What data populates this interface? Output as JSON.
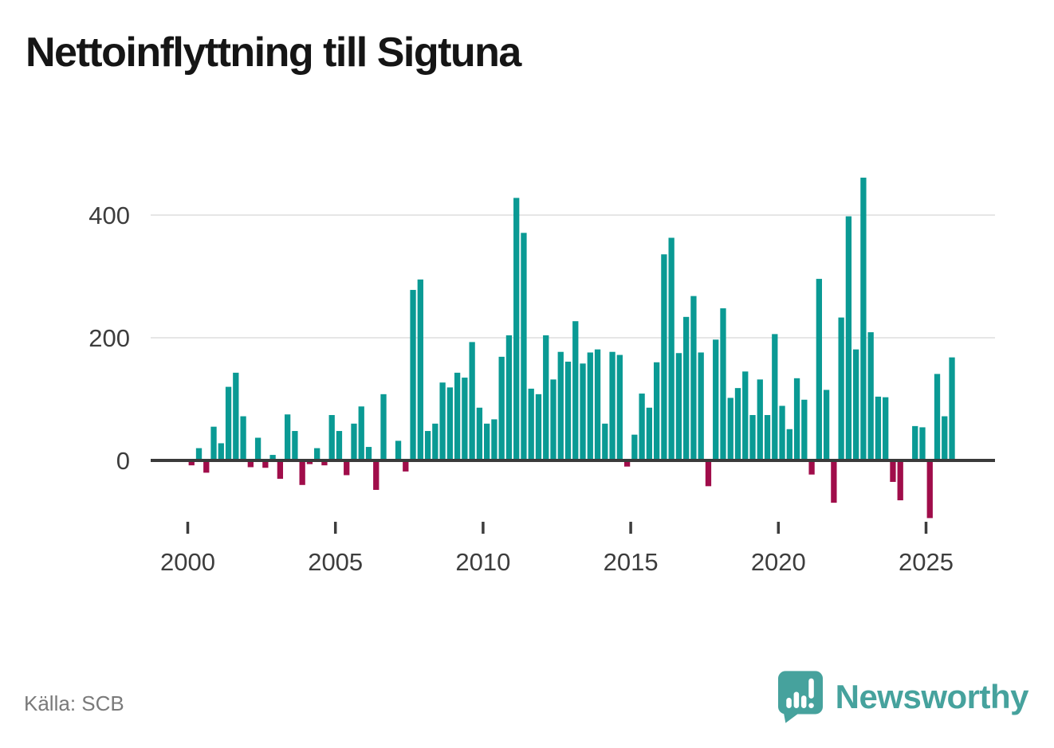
{
  "title": "Nettoinflyttning till Sigtuna",
  "source": "Källa: SCB",
  "branding": {
    "logo_text": "Newsworthy",
    "logo_icon": "speech-bubble-bar-chart-exclamation"
  },
  "colors": {
    "positive_bar": "#0a9a94",
    "negative_bar": "#a00d4a",
    "axis": "#3a3a3a",
    "grid": "#e6e6e6",
    "tick_label": "#3d3d3d",
    "source_text": "#7a7a7a",
    "brand_teal": "#46a29d",
    "title_text": "#151515"
  },
  "chart_data": {
    "type": "bar",
    "title": "Nettoinflyttning till Sigtuna",
    "frequency": "quarterly",
    "start_period": "2000Q1",
    "end_period": "2025Q4",
    "values": [
      -8,
      20,
      -20,
      55,
      28,
      120,
      143,
      72,
      -11,
      37,
      -12,
      9,
      -30,
      75,
      48,
      -40,
      -6,
      20,
      -8,
      74,
      48,
      -24,
      60,
      88,
      22,
      -48,
      108,
      0,
      32,
      -18,
      278,
      295,
      48,
      60,
      127,
      119,
      143,
      135,
      193,
      86,
      60,
      67,
      169,
      204,
      428,
      371,
      117,
      108,
      204,
      132,
      177,
      161,
      227,
      158,
      176,
      181,
      60,
      177,
      172,
      -10,
      42,
      109,
      86,
      160,
      336,
      363,
      175,
      234,
      268,
      176,
      -42,
      197,
      248,
      102,
      118,
      145,
      74,
      132,
      74,
      206,
      89,
      51,
      134,
      99,
      -23,
      296,
      115,
      -69,
      233,
      398,
      181,
      461,
      209,
      104,
      103,
      -35,
      -65,
      0,
      56,
      54,
      -94,
      141,
      72,
      168
    ],
    "x_tick_labels": [
      "2000",
      "2005",
      "2010",
      "2015",
      "2020",
      "2025"
    ],
    "y_tick_labels": [
      "0",
      "200",
      "400"
    ],
    "y_tick_values": [
      0,
      200,
      400
    ],
    "ylim": [
      -120,
      480
    ],
    "grid": "horizontal-only",
    "legend": "none",
    "bar_colors": {
      "positive": "#0a9a94",
      "negative": "#a00d4a"
    }
  }
}
